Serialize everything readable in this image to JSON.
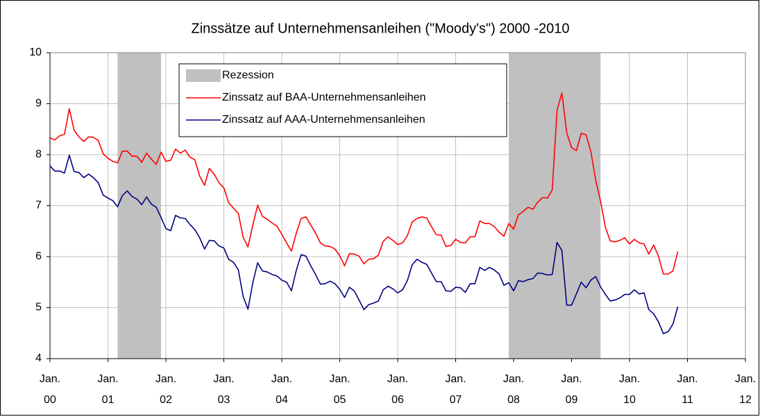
{
  "chart_data": {
    "type": "line",
    "title": "Zinssätze auf Unternehmensanleihen (\"Moody's\") 2000 -2010",
    "x": [
      "2000-01",
      "2000-02",
      "2000-03",
      "2000-04",
      "2000-05",
      "2000-06",
      "2000-07",
      "2000-08",
      "2000-09",
      "2000-10",
      "2000-11",
      "2000-12",
      "2001-01",
      "2001-02",
      "2001-03",
      "2001-04",
      "2001-05",
      "2001-06",
      "2001-07",
      "2001-08",
      "2001-09",
      "2001-10",
      "2001-11",
      "2001-12",
      "2002-01",
      "2002-02",
      "2002-03",
      "2002-04",
      "2002-05",
      "2002-06",
      "2002-07",
      "2002-08",
      "2002-09",
      "2002-10",
      "2002-11",
      "2002-12",
      "2003-01",
      "2003-02",
      "2003-03",
      "2003-04",
      "2003-05",
      "2003-06",
      "2003-07",
      "2003-08",
      "2003-09",
      "2003-10",
      "2003-11",
      "2003-12",
      "2004-01",
      "2004-02",
      "2004-03",
      "2004-04",
      "2004-05",
      "2004-06",
      "2004-07",
      "2004-08",
      "2004-09",
      "2004-10",
      "2004-11",
      "2004-12",
      "2005-01",
      "2005-02",
      "2005-03",
      "2005-04",
      "2005-05",
      "2005-06",
      "2005-07",
      "2005-08",
      "2005-09",
      "2005-10",
      "2005-11",
      "2005-12",
      "2006-01",
      "2006-02",
      "2006-03",
      "2006-04",
      "2006-05",
      "2006-06",
      "2006-07",
      "2006-08",
      "2006-09",
      "2006-10",
      "2006-11",
      "2006-12",
      "2007-01",
      "2007-02",
      "2007-03",
      "2007-04",
      "2007-05",
      "2007-06",
      "2007-07",
      "2007-08",
      "2007-09",
      "2007-10",
      "2007-11",
      "2007-12",
      "2008-01",
      "2008-02",
      "2008-03",
      "2008-04",
      "2008-05",
      "2008-06",
      "2008-07",
      "2008-08",
      "2008-09",
      "2008-10",
      "2008-11",
      "2008-12",
      "2009-01",
      "2009-02",
      "2009-03",
      "2009-04",
      "2009-05",
      "2009-06",
      "2009-07",
      "2009-08",
      "2009-09",
      "2009-10",
      "2009-11",
      "2009-12",
      "2010-01",
      "2010-02",
      "2010-03",
      "2010-04",
      "2010-05",
      "2010-06",
      "2010-07",
      "2010-08",
      "2010-09",
      "2010-10",
      "2010-11"
    ],
    "series": [
      {
        "name": "Zinssatz auf BAA-Unternehmensanleihen",
        "color": "#ff0000",
        "values": [
          8.33,
          8.29,
          8.37,
          8.4,
          8.9,
          8.48,
          8.35,
          8.26,
          8.35,
          8.34,
          8.28,
          8.02,
          7.93,
          7.87,
          7.84,
          8.07,
          8.07,
          7.97,
          7.97,
          7.85,
          8.03,
          7.91,
          7.81,
          8.05,
          7.87,
          7.89,
          8.11,
          8.03,
          8.09,
          7.95,
          7.9,
          7.58,
          7.4,
          7.73,
          7.62,
          7.45,
          7.35,
          7.06,
          6.95,
          6.85,
          6.38,
          6.19,
          6.62,
          7.01,
          6.79,
          6.73,
          6.66,
          6.6,
          6.44,
          6.27,
          6.11,
          6.46,
          6.75,
          6.78,
          6.62,
          6.46,
          6.27,
          6.21,
          6.2,
          6.15,
          6.02,
          5.82,
          6.06,
          6.05,
          6.01,
          5.86,
          5.95,
          5.96,
          6.03,
          6.3,
          6.39,
          6.32,
          6.24,
          6.27,
          6.41,
          6.68,
          6.75,
          6.78,
          6.76,
          6.59,
          6.43,
          6.42,
          6.2,
          6.22,
          6.34,
          6.28,
          6.27,
          6.39,
          6.39,
          6.7,
          6.65,
          6.65,
          6.59,
          6.48,
          6.4,
          6.65,
          6.54,
          6.82,
          6.89,
          6.97,
          6.93,
          7.07,
          7.16,
          7.15,
          7.31,
          8.88,
          9.21,
          8.43,
          8.14,
          8.08,
          8.42,
          8.39,
          8.06,
          7.5,
          7.09,
          6.58,
          6.31,
          6.29,
          6.32,
          6.37,
          6.25,
          6.34,
          6.27,
          6.25,
          6.05,
          6.23,
          6.01,
          5.66,
          5.66,
          5.72,
          6.1
        ]
      },
      {
        "name": "Zinssatz auf AAA-Unternehmensanleihen",
        "color": "#000080",
        "values": [
          7.78,
          7.68,
          7.68,
          7.64,
          7.99,
          7.67,
          7.65,
          7.55,
          7.62,
          7.55,
          7.45,
          7.21,
          7.15,
          7.1,
          6.98,
          7.2,
          7.29,
          7.18,
          7.13,
          7.02,
          7.17,
          7.03,
          6.97,
          6.77,
          6.55,
          6.51,
          6.81,
          6.76,
          6.75,
          6.63,
          6.53,
          6.37,
          6.15,
          6.32,
          6.31,
          6.21,
          6.17,
          5.95,
          5.89,
          5.74,
          5.22,
          4.97,
          5.49,
          5.88,
          5.72,
          5.7,
          5.65,
          5.62,
          5.54,
          5.5,
          5.33,
          5.73,
          6.04,
          6.01,
          5.82,
          5.65,
          5.46,
          5.47,
          5.52,
          5.47,
          5.36,
          5.2,
          5.4,
          5.33,
          5.15,
          4.96,
          5.06,
          5.09,
          5.13,
          5.35,
          5.42,
          5.37,
          5.29,
          5.35,
          5.53,
          5.84,
          5.95,
          5.89,
          5.85,
          5.68,
          5.51,
          5.51,
          5.33,
          5.32,
          5.4,
          5.39,
          5.3,
          5.47,
          5.47,
          5.79,
          5.73,
          5.79,
          5.74,
          5.66,
          5.44,
          5.49,
          5.33,
          5.53,
          5.51,
          5.55,
          5.57,
          5.68,
          5.67,
          5.64,
          5.65,
          6.28,
          6.12,
          5.05,
          5.05,
          5.27,
          5.5,
          5.39,
          5.54,
          5.61,
          5.41,
          5.26,
          5.13,
          5.15,
          5.19,
          5.26,
          5.26,
          5.35,
          5.27,
          5.29,
          4.96,
          4.88,
          4.72,
          4.49,
          4.53,
          4.68,
          5.02
        ]
      }
    ],
    "recession": {
      "name": "Rezession",
      "color": "#c0c0c0",
      "periods": [
        {
          "start": "2001-03",
          "end": "2001-11"
        },
        {
          "start": "2007-12",
          "end": "2009-06"
        }
      ]
    },
    "xlim": [
      "2000-01",
      "2012-01"
    ],
    "xticks": [
      {
        "value": "2000-01",
        "label": [
          "Jan.",
          "00"
        ]
      },
      {
        "value": "2001-01",
        "label": [
          "Jan.",
          "01"
        ]
      },
      {
        "value": "2002-01",
        "label": [
          "Jan.",
          "02"
        ]
      },
      {
        "value": "2003-01",
        "label": [
          "Jan.",
          "03"
        ]
      },
      {
        "value": "2004-01",
        "label": [
          "Jan.",
          "04"
        ]
      },
      {
        "value": "2005-01",
        "label": [
          "Jan.",
          "05"
        ]
      },
      {
        "value": "2006-01",
        "label": [
          "Jan.",
          "06"
        ]
      },
      {
        "value": "2007-01",
        "label": [
          "Jan.",
          "07"
        ]
      },
      {
        "value": "2008-01",
        "label": [
          "Jan.",
          "08"
        ]
      },
      {
        "value": "2009-01",
        "label": [
          "Jan.",
          "09"
        ]
      },
      {
        "value": "2010-01",
        "label": [
          "Jan.",
          "10"
        ]
      },
      {
        "value": "2011-01",
        "label": [
          "Jan.",
          "11"
        ]
      },
      {
        "value": "2012-01",
        "label": [
          "Jan.",
          "12"
        ]
      }
    ],
    "ylim": [
      4,
      10
    ],
    "yticks": [
      4,
      5,
      6,
      7,
      8,
      9,
      10
    ],
    "grid": true,
    "legend": "top-left"
  }
}
